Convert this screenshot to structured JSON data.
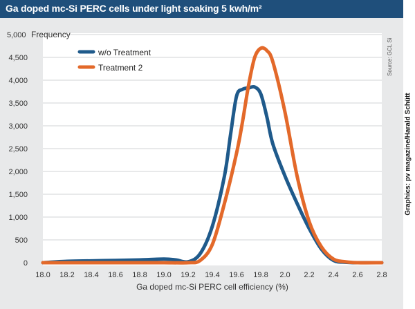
{
  "header": {
    "title": "Ga doped mc-Si PERC cells under light soaking 5 kwh/m²"
  },
  "credit": "Graphics: pv magazine/Harald Schütt",
  "source": "Source: GCL Si",
  "colors": {
    "header_bg": "#1f4f7b",
    "panel_bg": "#e8e9ea",
    "plot_bg": "#ffffff",
    "series_1": "#1f5a8b",
    "series_2": "#e3692a"
  },
  "chart_data": {
    "type": "line",
    "title": "Ga doped mc-Si PERC cells under light soaking 5 kwh/m²",
    "xlabel": "Ga doped mc-Si PERC cell efficiency (%)",
    "ylabel": "Frequency",
    "xlim": [
      18.0,
      2.8
    ],
    "xticks": [
      "18.0",
      "18.2",
      "18.4",
      "18.6",
      "18.8",
      "19.0",
      "19.2",
      "19.4",
      "19.6",
      "19.8",
      "2.0",
      "2.2",
      "2.4",
      "2.6",
      "2.8"
    ],
    "ylim": [
      0,
      5000
    ],
    "yticks": [
      "0",
      "500",
      "1,000",
      "1,500",
      "2,000",
      "2,500",
      "3,000",
      "3,500",
      "4,000",
      "4,500",
      "5,000"
    ],
    "grid": "horizontal",
    "legend": "top-left",
    "series": [
      {
        "name": "w/o Treatment",
        "x": [
          18.0,
          18.2,
          18.4,
          18.6,
          18.8,
          19.0,
          19.1,
          19.2,
          19.3,
          19.4,
          19.5,
          19.55,
          19.6,
          19.65,
          19.7,
          19.75,
          19.8,
          19.85,
          19.9,
          20.0,
          20.1,
          20.2,
          20.3,
          20.4,
          20.5,
          20.6,
          20.8
        ],
        "y": [
          0,
          30,
          40,
          50,
          60,
          80,
          60,
          20,
          200,
          800,
          1900,
          2800,
          3650,
          3800,
          3830,
          3850,
          3700,
          3200,
          2600,
          1900,
          1300,
          750,
          300,
          50,
          10,
          0,
          0
        ]
      },
      {
        "name": "Treatment 2",
        "x": [
          18.0,
          18.2,
          18.4,
          18.6,
          18.8,
          19.0,
          19.2,
          19.3,
          19.4,
          19.5,
          19.6,
          19.65,
          19.7,
          19.75,
          19.8,
          19.85,
          19.9,
          20.0,
          20.1,
          20.2,
          20.3,
          20.4,
          20.5,
          20.6,
          20.8
        ],
        "y": [
          0,
          0,
          0,
          0,
          0,
          0,
          0,
          50,
          400,
          1300,
          2400,
          3100,
          3900,
          4500,
          4700,
          4650,
          4400,
          3300,
          1900,
          900,
          350,
          80,
          20,
          0,
          0
        ]
      }
    ]
  }
}
